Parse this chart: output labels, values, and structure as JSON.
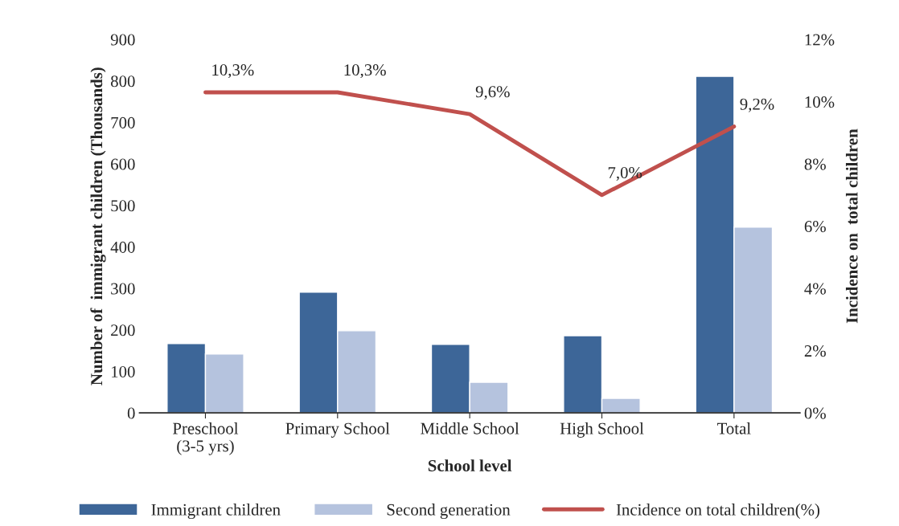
{
  "chart_data": {
    "type": "bar",
    "xlabel": "School level",
    "ylabel": "Number of  immigrant children (Thousands)",
    "y2label": "Incidence on  total children",
    "categories": [
      "Preschool\n(3-5 yrs)",
      "Primary School",
      "Middle School",
      "High School",
      "Total"
    ],
    "series": [
      {
        "name": "Immigrant children",
        "color": "#3d6698",
        "values": [
          167,
          291,
          165,
          186,
          811
        ]
      },
      {
        "name": "Second generation",
        "color": "#b5c3de",
        "values": [
          142,
          198,
          74,
          35,
          448
        ]
      },
      {
        "name": "Incidence on total children(%)",
        "type": "line",
        "axis": "y2",
        "color": "#c0504d",
        "values": [
          10.3,
          10.3,
          9.6,
          7.0,
          9.2
        ],
        "value_labels": [
          "10,3%",
          "10,3%",
          "9,6%",
          "7,0%",
          "9,2%"
        ]
      }
    ],
    "ylim": [
      0,
      900
    ],
    "yticks": [
      0,
      100,
      200,
      300,
      400,
      500,
      600,
      700,
      800,
      900
    ],
    "y2lim": [
      0,
      12
    ],
    "y2ticks": [
      {
        "value": 0,
        "label": "0%"
      },
      {
        "value": 2,
        "label": "2%"
      },
      {
        "value": 4,
        "label": "4%"
      },
      {
        "value": 6,
        "label": "6%"
      },
      {
        "value": 8,
        "label": "8%"
      },
      {
        "value": 10,
        "label": "10%"
      },
      {
        "value": 12,
        "label": "12%"
      }
    ],
    "grid": false,
    "legend": "bottom"
  }
}
